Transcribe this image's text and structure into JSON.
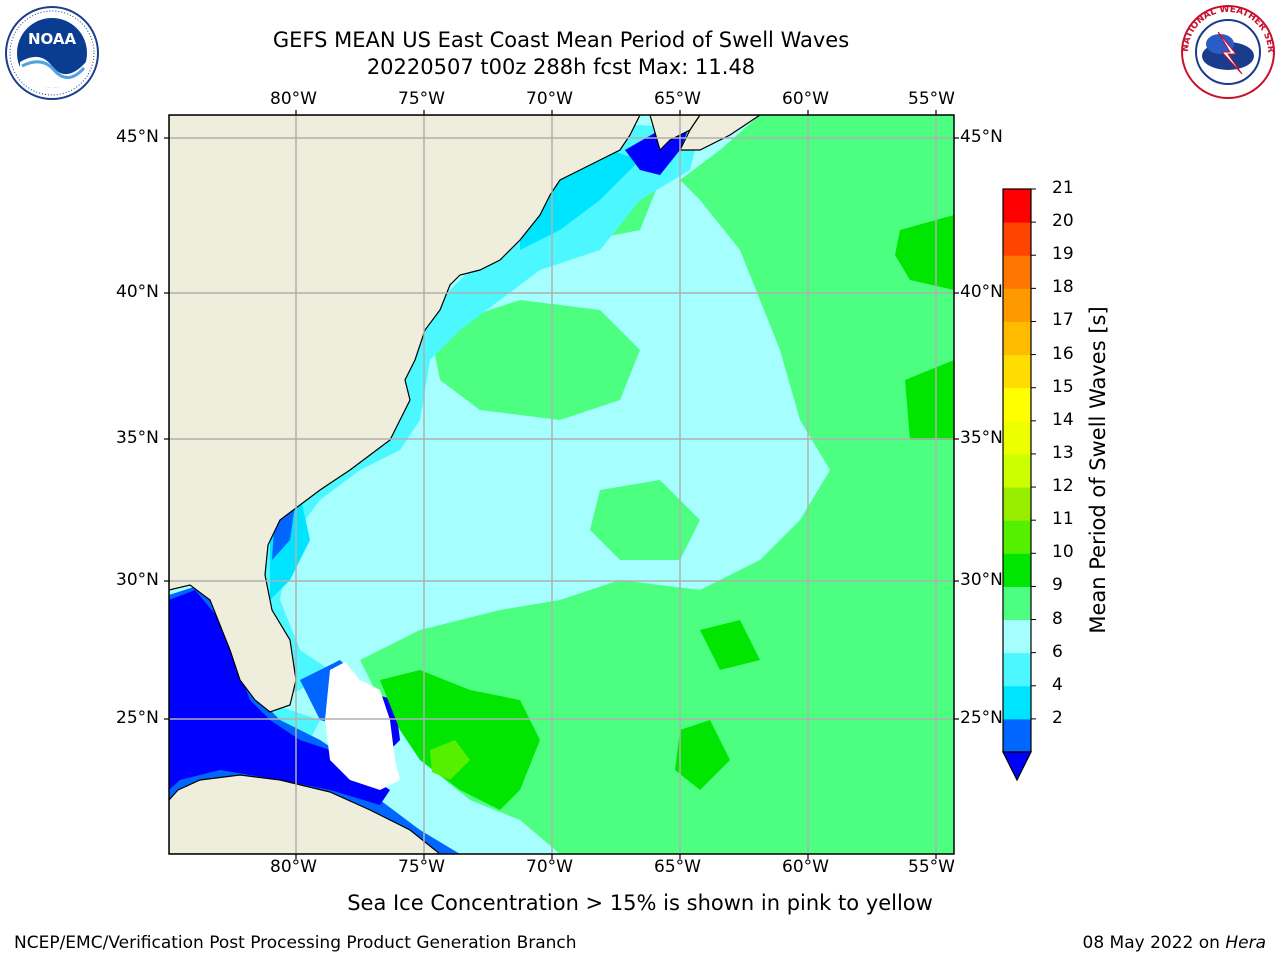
{
  "header": {
    "title_line1": "GEFS MEAN US East Coast Mean Period of Swell Waves",
    "title_line2": "20220507 t00z 288h fcst   Max: 11.48"
  },
  "map": {
    "top_lon_labels": [
      "80°W",
      "75°W",
      "70°W",
      "65°W",
      "60°W",
      "55°W"
    ],
    "bottom_lon_labels": [
      "80°W",
      "75°W",
      "70°W",
      "65°W",
      "60°W",
      "55°W"
    ],
    "left_lat_labels": [
      "45°N",
      "40°N",
      "35°N",
      "30°N",
      "25°N"
    ],
    "right_lat_labels": [
      "45°N",
      "40°N",
      "35°N",
      "30°N",
      "25°N"
    ],
    "land_color": "#efeddc",
    "grid_color": "#b0b0b0"
  },
  "colorbar": {
    "title": "Mean Period of Swell Waves [s]",
    "tick_labels": [
      "21",
      "20",
      "19",
      "18",
      "17",
      "16",
      "15",
      "14",
      "13",
      "12",
      "11",
      "10",
      "9",
      "8",
      "6",
      "4",
      "2"
    ],
    "colors_bottom_to_top": [
      "#0066ff",
      "#00e5ff",
      "#4df7ff",
      "#a5ffff",
      "#4dff80",
      "#00e600",
      "#55f000",
      "#99ee00",
      "#ccff00",
      "#eeff00",
      "#ffff00",
      "#ffdd00",
      "#ffbb00",
      "#ff9900",
      "#ff7700",
      "#ff4400",
      "#ff0000"
    ],
    "extend_color": "#0000ff"
  },
  "footer": {
    "note": "Sea Ice Concentration > 15% is shown in pink to yellow",
    "credit": "NCEP/EMC/Verification Post Processing Product Generation Branch",
    "date": "08 May 2022 on ",
    "host": "Hera"
  },
  "logos": {
    "noaa_text": "NOAA",
    "nws_text": "NATIONAL WEATHER SERVICE"
  }
}
